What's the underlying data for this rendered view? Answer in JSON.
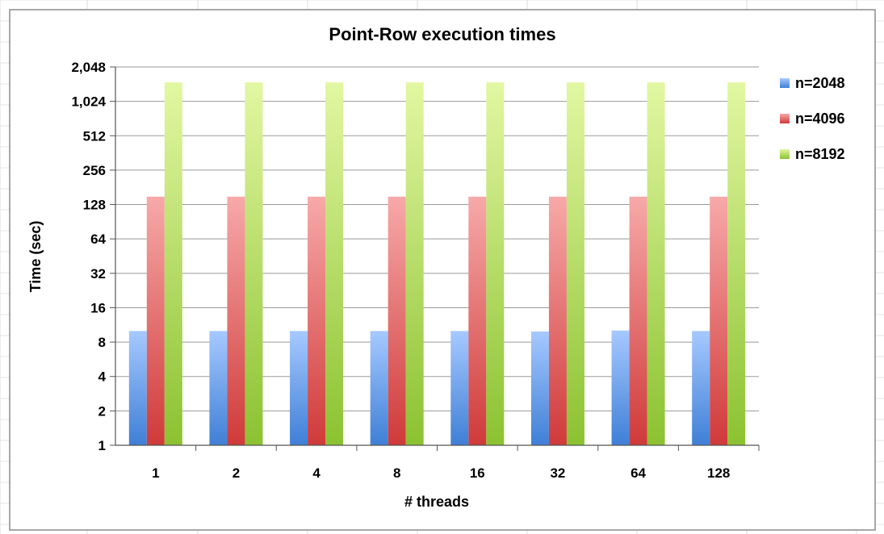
{
  "chart_data": {
    "type": "bar",
    "title": "Point-Row execution times",
    "xlabel": "# threads",
    "ylabel": "Time (sec)",
    "categories": [
      "1",
      "2",
      "4",
      "8",
      "16",
      "32",
      "64",
      "128"
    ],
    "y_scale": "log2",
    "ylim": [
      1,
      2048
    ],
    "y_ticks": [
      "1",
      "2",
      "4",
      "8",
      "16",
      "32",
      "64",
      "128",
      "256",
      "512",
      "1,024",
      "2,048"
    ],
    "grid": true,
    "legend_position": "right",
    "series": [
      {
        "name": "n=2048",
        "values": [
          10,
          10,
          10,
          10,
          10,
          9.9,
          10.1,
          10
        ],
        "color_top": "#a6c9ff",
        "color_bottom": "#3f7fd6"
      },
      {
        "name": "n=4096",
        "values": [
          150,
          150,
          150,
          150,
          150,
          150,
          150,
          150
        ],
        "color_top": "#f7a9a9",
        "color_bottom": "#d03a3a"
      },
      {
        "name": "n=8192",
        "values": [
          1500,
          1500,
          1500,
          1500,
          1500,
          1500,
          1500,
          1500
        ],
        "color_top": "#e2f7a2",
        "color_bottom": "#8cc231"
      }
    ]
  }
}
